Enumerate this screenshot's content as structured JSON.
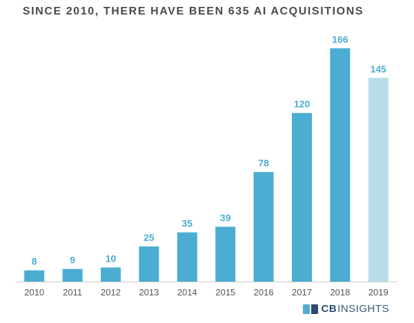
{
  "chart_data": {
    "type": "bar",
    "title": "SINCE 2010, THERE HAVE BEEN 635 AI ACQUISITIONS",
    "categories": [
      "2010",
      "2011",
      "2012",
      "2013",
      "2014",
      "2015",
      "2016",
      "2017",
      "2018",
      "2019"
    ],
    "values": [
      8,
      9,
      10,
      25,
      35,
      39,
      78,
      120,
      166,
      145
    ],
    "highlight_index": 9,
    "ylim": [
      0,
      166
    ],
    "xlabel": "",
    "ylabel": "",
    "grid": false,
    "colors": {
      "bar": "#4badd1",
      "bar_highlight": "#b9dde8",
      "label": "#4badd1",
      "label_highlight": "#4badd1",
      "axis": "#cccccc"
    }
  },
  "brand": {
    "cb": "CB",
    "insights": "INSIGHTS"
  }
}
